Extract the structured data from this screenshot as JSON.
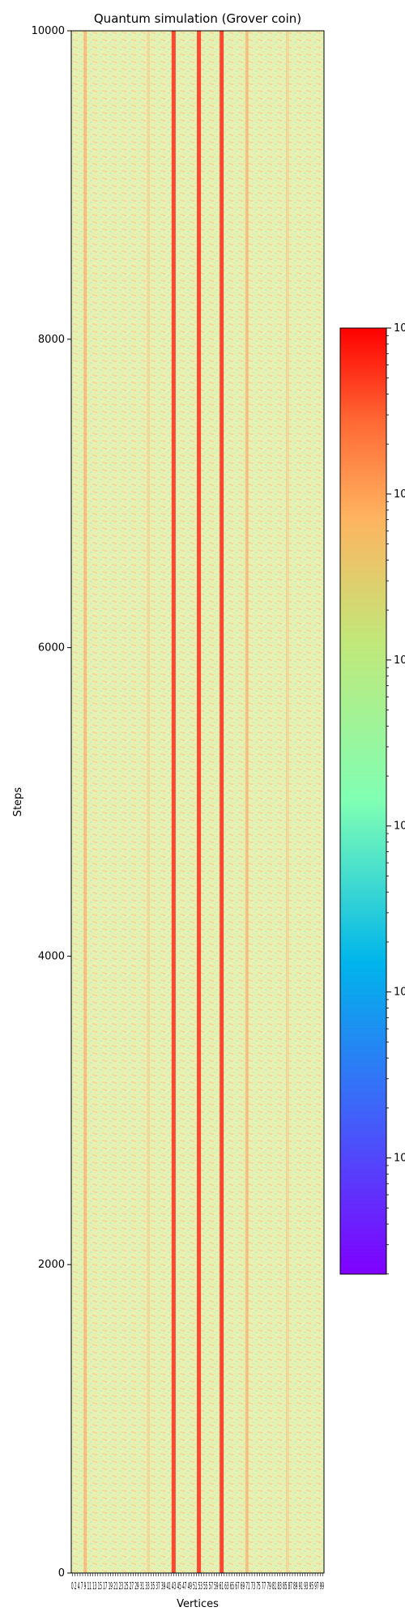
{
  "chart_data": {
    "type": "heatmap",
    "title": "Quantum simulation (Grover coin)",
    "xlabel": "Vertices",
    "ylabel": "Steps",
    "ylim": [
      0,
      10000
    ],
    "y_ticks": [
      0,
      2000,
      4000,
      6000,
      8000,
      10000
    ],
    "x_tick_labels": "0 2 4 7 9 11 13 15 17 19 21 23 25 27 29 31 33 35 37 39 41 43 45 47 49 51 53 55 57 59 61 63 65 67 69 71 73 75 77 79 81 83 85 87 89 91 93 95 97 99",
    "colormap": "rainbow",
    "colorbar": {
      "scale": "log",
      "tick_labels": [
        "10",
        "10",
        "10",
        "10",
        "10",
        "10"
      ]
    },
    "dominant_value_color": "#e6f0b0",
    "high_value_columns": [
      {
        "vertex": 40,
        "level": "high"
      },
      {
        "vertex": 50,
        "level": "high"
      },
      {
        "vertex": 59,
        "level": "high"
      },
      {
        "vertex": 69,
        "level": "medium"
      },
      {
        "vertex": 5,
        "level": "medium"
      },
      {
        "vertex": 30,
        "level": "low"
      },
      {
        "vertex": 85,
        "level": "low"
      }
    ],
    "vertex_count": 100
  }
}
